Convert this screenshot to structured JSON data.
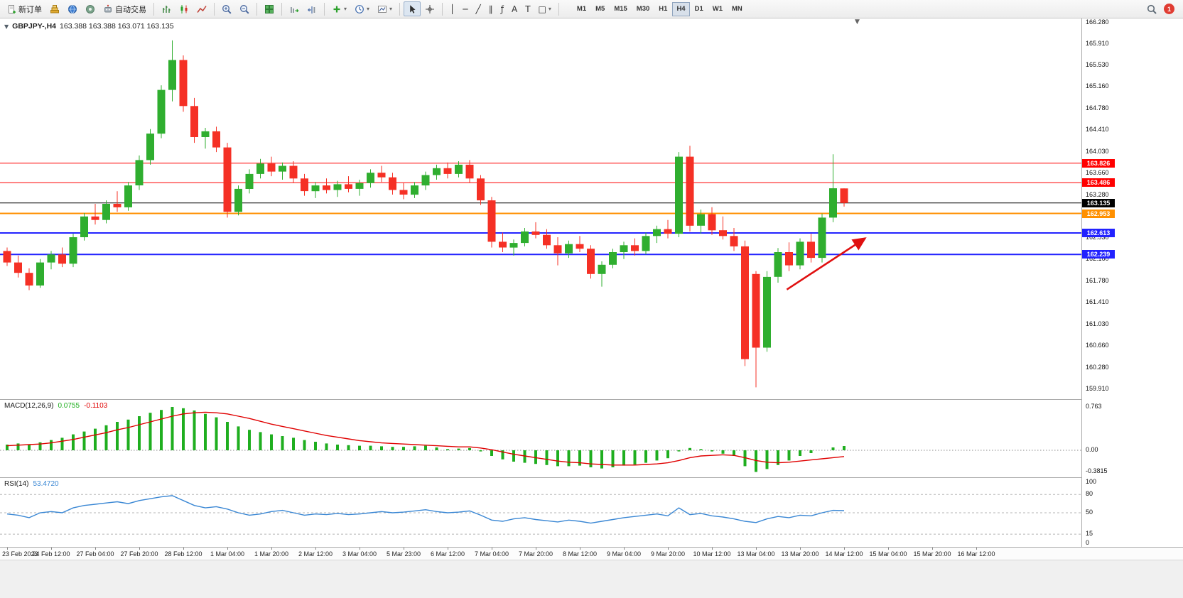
{
  "toolbar": {
    "items": [
      {
        "name": "new-order-button",
        "label": "新订单",
        "icon": "paper"
      },
      {
        "name": "charts-stack-button",
        "icon": "gold-stack"
      },
      {
        "name": "market-watch-button",
        "icon": "blue-globe"
      },
      {
        "name": "community-button",
        "icon": "teal-circle"
      },
      {
        "name": "algo-trading-button",
        "label": "自动交易",
        "icon": "robot"
      },
      {
        "sep": true
      },
      {
        "name": "bars-chart-button",
        "icon": "bars-chart"
      },
      {
        "name": "candles-chart-button",
        "icon": "candles-chart"
      },
      {
        "name": "line-chart-button",
        "icon": "line-chart"
      },
      {
        "sep": true
      },
      {
        "name": "zoom-in-button",
        "icon": "zoom-in"
      },
      {
        "name": "zoom-out-button",
        "icon": "zoom-out"
      },
      {
        "sep": true
      },
      {
        "name": "tile-windows-button",
        "icon": "tile-windows"
      },
      {
        "sep": true
      },
      {
        "name": "autoscroll-button",
        "icon": "autoscroll"
      },
      {
        "name": "chart-shift-button",
        "icon": "chart-shift"
      },
      {
        "sep": true
      },
      {
        "name": "add-indicator-button",
        "icon": "add-indicator",
        "dropdown": true
      },
      {
        "name": "periods-button",
        "icon": "clock",
        "dropdown": true
      },
      {
        "name": "templates-button",
        "icon": "template",
        "dropdown": true
      },
      {
        "sep": true
      },
      {
        "name": "cursor-button",
        "icon": "cursor",
        "active": true
      },
      {
        "name": "crosshair-button",
        "icon": "crosshair"
      },
      {
        "sep": true
      },
      {
        "name": "vertical-line-button",
        "glyph": "│"
      },
      {
        "name": "horizontal-line-button",
        "glyph": "─"
      },
      {
        "name": "trendline-button",
        "glyph": "╱"
      },
      {
        "name": "channel-button",
        "glyph": "∥"
      },
      {
        "name": "fibonacci-button",
        "glyph": "ƒ"
      },
      {
        "name": "text-button",
        "glyph": "A"
      },
      {
        "name": "label-button",
        "glyph": "T"
      },
      {
        "name": "shapes-button",
        "glyph": "□",
        "dropdown": true
      },
      {
        "sep": true
      }
    ],
    "timeframes": [
      "M1",
      "M5",
      "M15",
      "M30",
      "H1",
      "H4",
      "D1",
      "W1",
      "MN"
    ],
    "active_timeframe": "H4",
    "notification_count": "1"
  },
  "chart": {
    "symbol_label": "GBPJPY-,H4",
    "ohlc_text": "163.388 163.388 163.071 163.135",
    "price_axis_max": 166.28,
    "price_axis_min": 159.91,
    "price_axis_labels": [
      "166.280",
      "165.910",
      "165.530",
      "165.160",
      "164.780",
      "164.410",
      "164.030",
      "163.660",
      "163.280",
      "162.910",
      "162.530",
      "162.160",
      "161.780",
      "161.410",
      "161.030",
      "160.660",
      "160.280",
      "159.910"
    ],
    "levels": [
      {
        "label": "163.826",
        "price": 163.826,
        "color": "#ff0000",
        "width": 1
      },
      {
        "label": "163.486",
        "price": 163.486,
        "color": "#ff0000",
        "width": 1
      },
      {
        "label": "162.953",
        "price": 162.953,
        "color": "#ff9000",
        "width": 2
      },
      {
        "label": "162.613",
        "price": 162.613,
        "color": "#2222ff",
        "width": 2
      },
      {
        "label": "162.239",
        "price": 162.239,
        "color": "#2222ff",
        "width": 2
      }
    ],
    "bid": {
      "label": "163.135",
      "price": 163.135,
      "color": "#000000"
    },
    "arrow": {
      "from_index": 70.8,
      "from_price": 161.63,
      "to_index": 77.9,
      "to_price": 162.52,
      "color": "#e01010"
    }
  },
  "chart_data": {
    "type": "candlestick",
    "symbol": "GBPJPY-",
    "timeframe": "H4",
    "bull_color": "#2fae2f",
    "bear_color": "#f53025",
    "candles": [
      [
        162.3,
        162.36,
        162.04,
        162.1
      ],
      [
        162.1,
        162.22,
        161.84,
        161.92
      ],
      [
        161.92,
        162.0,
        161.62,
        161.7
      ],
      [
        161.7,
        162.16,
        161.66,
        162.1
      ],
      [
        162.1,
        162.3,
        161.98,
        162.24
      ],
      [
        162.24,
        162.36,
        162.02,
        162.08
      ],
      [
        162.08,
        162.6,
        162.02,
        162.54
      ],
      [
        162.54,
        162.96,
        162.48,
        162.9
      ],
      [
        162.9,
        163.12,
        162.76,
        162.84
      ],
      [
        162.84,
        163.18,
        162.78,
        163.12
      ],
      [
        163.12,
        163.34,
        162.98,
        163.06
      ],
      [
        163.06,
        163.5,
        163.0,
        163.44
      ],
      [
        163.44,
        163.96,
        163.36,
        163.88
      ],
      [
        163.88,
        164.42,
        163.8,
        164.34
      ],
      [
        164.34,
        165.18,
        164.26,
        165.1
      ],
      [
        165.1,
        165.96,
        164.9,
        165.62
      ],
      [
        165.62,
        165.7,
        164.72,
        164.82
      ],
      [
        164.82,
        164.96,
        164.18,
        164.28
      ],
      [
        164.28,
        164.44,
        164.08,
        164.38
      ],
      [
        164.38,
        164.46,
        164.02,
        164.1
      ],
      [
        164.1,
        164.18,
        162.88,
        162.98
      ],
      [
        162.98,
        163.44,
        162.92,
        163.38
      ],
      [
        163.38,
        163.72,
        163.3,
        163.64
      ],
      [
        163.64,
        163.9,
        163.56,
        163.82
      ],
      [
        163.82,
        163.94,
        163.6,
        163.68
      ],
      [
        163.68,
        163.84,
        163.54,
        163.78
      ],
      [
        163.78,
        163.86,
        163.48,
        163.56
      ],
      [
        163.56,
        163.64,
        163.26,
        163.34
      ],
      [
        163.34,
        163.5,
        163.22,
        163.44
      ],
      [
        163.44,
        163.56,
        163.3,
        163.36
      ],
      [
        163.36,
        163.52,
        163.24,
        163.46
      ],
      [
        163.46,
        163.6,
        163.32,
        163.38
      ],
      [
        163.38,
        163.54,
        163.26,
        163.48
      ],
      [
        163.48,
        163.72,
        163.4,
        163.66
      ],
      [
        163.66,
        163.78,
        163.5,
        163.58
      ],
      [
        163.58,
        163.66,
        163.28,
        163.36
      ],
      [
        163.36,
        163.48,
        163.2,
        163.28
      ],
      [
        163.28,
        163.5,
        163.22,
        163.44
      ],
      [
        163.44,
        163.68,
        163.36,
        163.62
      ],
      [
        163.62,
        163.8,
        163.54,
        163.74
      ],
      [
        163.74,
        163.84,
        163.56,
        163.64
      ],
      [
        163.64,
        163.86,
        163.58,
        163.8
      ],
      [
        163.8,
        163.88,
        163.48,
        163.56
      ],
      [
        163.56,
        163.62,
        163.1,
        163.18
      ],
      [
        163.18,
        163.24,
        162.36,
        162.46
      ],
      [
        162.46,
        162.62,
        162.28,
        162.36
      ],
      [
        162.36,
        162.5,
        162.22,
        162.44
      ],
      [
        162.44,
        162.7,
        162.38,
        162.64
      ],
      [
        162.64,
        162.8,
        162.52,
        162.58
      ],
      [
        162.58,
        162.68,
        162.34,
        162.4
      ],
      [
        162.4,
        162.54,
        162.05,
        162.26
      ],
      [
        162.26,
        162.48,
        162.18,
        162.42
      ],
      [
        162.42,
        162.56,
        162.28,
        162.34
      ],
      [
        162.34,
        162.4,
        161.82,
        161.9
      ],
      [
        161.9,
        162.12,
        161.68,
        162.06
      ],
      [
        162.06,
        162.34,
        162.0,
        162.28
      ],
      [
        162.28,
        162.46,
        162.16,
        162.4
      ],
      [
        162.4,
        162.52,
        162.22,
        162.3
      ],
      [
        162.3,
        162.62,
        162.24,
        162.56
      ],
      [
        162.56,
        162.74,
        162.44,
        162.68
      ],
      [
        162.68,
        162.84,
        162.52,
        162.6
      ],
      [
        162.6,
        164.02,
        162.54,
        163.94
      ],
      [
        163.94,
        164.13,
        162.64,
        162.74
      ],
      [
        162.74,
        163.02,
        162.6,
        162.94
      ],
      [
        162.94,
        163.06,
        162.58,
        162.66
      ],
      [
        162.66,
        162.9,
        162.5,
        162.56
      ],
      [
        162.56,
        162.7,
        162.3,
        162.38
      ],
      [
        162.38,
        162.48,
        160.3,
        160.42
      ],
      [
        161.9,
        161.95,
        159.93,
        160.62
      ],
      [
        160.62,
        161.95,
        160.55,
        161.85
      ],
      [
        161.85,
        162.35,
        161.75,
        162.28
      ],
      [
        162.28,
        162.45,
        161.95,
        162.05
      ],
      [
        162.05,
        162.52,
        161.98,
        162.46
      ],
      [
        162.46,
        162.6,
        162.1,
        162.18
      ],
      [
        162.18,
        162.95,
        162.1,
        162.88
      ],
      [
        162.88,
        163.98,
        162.8,
        163.39
      ],
      [
        163.388,
        163.388,
        163.071,
        163.135
      ]
    ],
    "time_labels": [
      "23 Feb 2023",
      "24 Feb 12:00",
      "27 Feb 04:00",
      "27 Feb 20:00",
      "28 Feb 12:00",
      "1 Mar 04:00",
      "1 Mar 20:00",
      "2 Mar 12:00",
      "3 Mar 04:00",
      "5 Mar 23:00",
      "6 Mar 12:00",
      "7 Mar 04:00",
      "7 Mar 20:00",
      "8 Mar 12:00",
      "9 Mar 04:00",
      "9 Mar 20:00",
      "10 Mar 12:00",
      "13 Mar 04:00",
      "13 Mar 20:00",
      "14 Mar 12:00",
      "15 Mar 04:00",
      "15 Mar 20:00",
      "16 Mar 12:00"
    ]
  },
  "macd": {
    "name": "MACD(12,26,9)",
    "main_value": "0.0755",
    "signal_value": "-0.1103",
    "histogram_color": "#1fae1f",
    "signal_color": "#e00000",
    "axis_labels": [
      "0.763",
      "0.00",
      "-0.3815"
    ],
    "histogram": [
      0.1,
      0.12,
      0.1,
      0.14,
      0.18,
      0.22,
      0.28,
      0.33,
      0.38,
      0.44,
      0.5,
      0.54,
      0.6,
      0.66,
      0.71,
      0.763,
      0.74,
      0.7,
      0.64,
      0.58,
      0.5,
      0.42,
      0.36,
      0.32,
      0.28,
      0.25,
      0.22,
      0.18,
      0.15,
      0.12,
      0.1,
      0.09,
      0.08,
      0.08,
      0.07,
      0.06,
      0.06,
      0.07,
      0.08,
      0.05,
      0.02,
      0.03,
      0.04,
      -0.02,
      -0.1,
      -0.16,
      -0.2,
      -0.22,
      -0.24,
      -0.26,
      -0.28,
      -0.28,
      -0.27,
      -0.3,
      -0.32,
      -0.3,
      -0.27,
      -0.25,
      -0.22,
      -0.18,
      -0.14,
      -0.02,
      0.04,
      0.02,
      -0.02,
      -0.06,
      -0.1,
      -0.28,
      -0.3815,
      -0.33,
      -0.26,
      -0.18,
      -0.1,
      -0.05,
      0.0,
      0.05,
      0.0755
    ],
    "signal": [
      0.08,
      0.09,
      0.1,
      0.11,
      0.13,
      0.16,
      0.19,
      0.23,
      0.27,
      0.31,
      0.36,
      0.4,
      0.45,
      0.5,
      0.55,
      0.6,
      0.64,
      0.66,
      0.67,
      0.66,
      0.64,
      0.6,
      0.56,
      0.51,
      0.46,
      0.42,
      0.38,
      0.34,
      0.3,
      0.26,
      0.23,
      0.2,
      0.17,
      0.15,
      0.13,
      0.12,
      0.11,
      0.1,
      0.09,
      0.08,
      0.07,
      0.06,
      0.06,
      0.04,
      0.01,
      -0.03,
      -0.07,
      -0.1,
      -0.13,
      -0.16,
      -0.19,
      -0.21,
      -0.22,
      -0.24,
      -0.25,
      -0.26,
      -0.26,
      -0.26,
      -0.25,
      -0.24,
      -0.22,
      -0.18,
      -0.13,
      -0.1,
      -0.09,
      -0.08,
      -0.09,
      -0.13,
      -0.18,
      -0.21,
      -0.22,
      -0.21,
      -0.19,
      -0.17,
      -0.15,
      -0.13,
      -0.1103
    ]
  },
  "rsi": {
    "name": "RSI(14)",
    "value": "53.4720",
    "line_color": "#3a87d4",
    "axis_labels": [
      "100",
      "80",
      "50",
      "15",
      "0"
    ],
    "level_lines": [
      80,
      50,
      15
    ],
    "values": [
      48,
      46,
      42,
      50,
      52,
      50,
      58,
      62,
      64,
      66,
      68,
      65,
      70,
      73,
      76,
      78,
      70,
      62,
      58,
      60,
      56,
      50,
      46,
      48,
      52,
      54,
      50,
      46,
      48,
      47,
      49,
      47,
      48,
      50,
      52,
      50,
      51,
      53,
      55,
      52,
      50,
      51,
      53,
      46,
      38,
      36,
      40,
      42,
      39,
      37,
      35,
      38,
      36,
      33,
      36,
      39,
      42,
      44,
      46,
      48,
      45,
      58,
      47,
      49,
      45,
      43,
      40,
      36,
      34,
      40,
      44,
      42,
      46,
      45,
      50,
      54,
      53.47
    ]
  }
}
